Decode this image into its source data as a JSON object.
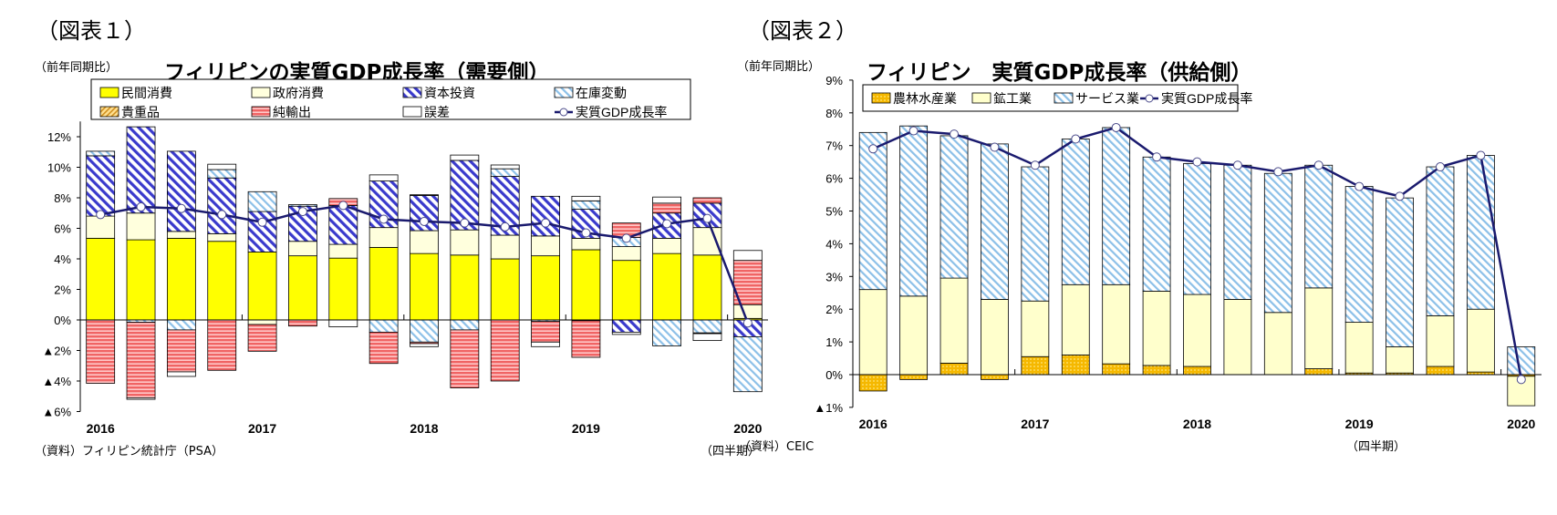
{
  "chart_data": [
    {
      "type": "bar",
      "figure_label": "（図表１）",
      "title": "フィリピンの実質GDP成長率（需要側）",
      "ylabel": "（前年同期比）",
      "source": "（資料）フィリピン統計庁（PSA）",
      "xunit": "（四半期）",
      "ylim": [
        -6,
        13
      ],
      "yticks": [
        -6,
        -4,
        -2,
        0,
        2,
        4,
        6,
        8,
        10,
        12
      ],
      "ytick_labels": [
        "▲6%",
        "▲4%",
        "▲2%",
        "0%",
        "2%",
        "4%",
        "6%",
        "8%",
        "10%",
        "12%"
      ],
      "categories": [
        "2016Q1",
        "2016Q2",
        "2016Q3",
        "2016Q4",
        "2017Q1",
        "2017Q2",
        "2017Q3",
        "2017Q4",
        "2018Q1",
        "2018Q2",
        "2018Q3",
        "2018Q4",
        "2019Q1",
        "2019Q2",
        "2019Q3",
        "2019Q4",
        "2020Q1"
      ],
      "year_labels": [
        "2016",
        "2017",
        "2018",
        "2019",
        "2020"
      ],
      "stacked": true,
      "legend_position": "top",
      "series": [
        {
          "name": "民間消費",
          "kind": "bar",
          "color": "#ffff00",
          "pattern": "solid",
          "values": [
            5.35,
            5.25,
            5.35,
            5.15,
            4.45,
            4.2,
            4.05,
            4.75,
            4.35,
            4.25,
            4.0,
            4.2,
            4.6,
            3.9,
            4.35,
            4.25,
            0.1
          ]
        },
        {
          "name": "政府消費",
          "kind": "bar",
          "color": "#ffffdd",
          "pattern": "solid",
          "values": [
            1.45,
            1.75,
            0.45,
            0.5,
            -0.3,
            0.95,
            0.9,
            1.3,
            1.5,
            1.65,
            1.55,
            1.3,
            0.75,
            0.9,
            1.0,
            1.8,
            0.9
          ]
        },
        {
          "name": "資本投資",
          "kind": "bar",
          "color": "#3a3acc",
          "pattern": "diagonal",
          "values": [
            3.95,
            5.65,
            5.25,
            3.65,
            2.65,
            2.3,
            2.55,
            3.05,
            2.3,
            4.55,
            3.85,
            2.6,
            1.9,
            -0.8,
            1.65,
            1.6,
            -1.1
          ]
        },
        {
          "name": "在庫変動",
          "kind": "bar",
          "color": "#8cc0e8",
          "pattern": "diagonal-thin",
          "values": [
            0.3,
            -0.15,
            -0.65,
            0.55,
            1.3,
            0.1,
            0,
            -0.8,
            -1.45,
            -0.65,
            0.5,
            -0.1,
            0.55,
            0.6,
            -1.7,
            -0.85,
            -3.6
          ]
        },
        {
          "name": "貴重品",
          "kind": "bar",
          "color": "#f0b030",
          "pattern": "hatch",
          "values": [
            0,
            0,
            0,
            0,
            0,
            0,
            0,
            0,
            0.05,
            0,
            0,
            0,
            -0.05,
            0,
            0,
            -0.05,
            0
          ]
        },
        {
          "name": "純輸出",
          "kind": "bar",
          "color": "#f06464",
          "pattern": "horizontal",
          "values": [
            -4.15,
            -4.95,
            -2.75,
            -3.3,
            -1.75,
            -0.4,
            0.45,
            -2.05,
            -0.1,
            -3.8,
            -4.0,
            -1.35,
            -2.4,
            0.95,
            0.65,
            0.35,
            2.9
          ]
        },
        {
          "name": "誤差",
          "kind": "bar",
          "color": "#ffffff",
          "pattern": "solid",
          "values": [
            0,
            -0.1,
            -0.3,
            0.35,
            0,
            0,
            -0.45,
            0.4,
            -0.2,
            0.35,
            0.25,
            -0.3,
            0.3,
            -0.15,
            0.4,
            -0.45,
            0.65
          ]
        },
        {
          "name": "実質GDP成長率",
          "kind": "line",
          "color": "#1a1a6e",
          "values": [
            6.9,
            7.4,
            7.3,
            6.9,
            6.4,
            7.1,
            7.5,
            6.6,
            6.45,
            6.35,
            6.1,
            6.35,
            5.7,
            5.35,
            6.3,
            6.65,
            -0.2
          ]
        }
      ]
    },
    {
      "type": "bar",
      "figure_label": "（図表２）",
      "title": "フィリピン　実質GDP成長率（供給側）",
      "ylabel": "（前年同期比）",
      "source": "（資料）CEIC",
      "xunit": "（四半期）",
      "ylim": [
        -1,
        9
      ],
      "yticks": [
        -1,
        0,
        1,
        2,
        3,
        4,
        5,
        6,
        7,
        8,
        9
      ],
      "ytick_labels": [
        "▲1%",
        "0%",
        "1%",
        "2%",
        "3%",
        "4%",
        "5%",
        "6%",
        "7%",
        "8%",
        "9%"
      ],
      "categories": [
        "2016Q1",
        "2016Q2",
        "2016Q3",
        "2016Q4",
        "2017Q1",
        "2017Q2",
        "2017Q3",
        "2017Q4",
        "2018Q1",
        "2018Q2",
        "2018Q3",
        "2018Q4",
        "2019Q1",
        "2019Q2",
        "2019Q3",
        "2019Q4",
        "2020Q1"
      ],
      "year_labels": [
        "2016",
        "2017",
        "2018",
        "2019",
        "2020"
      ],
      "stacked": true,
      "legend_position": "top",
      "series": [
        {
          "name": "農林水産業",
          "kind": "bar",
          "color": "#f5b800",
          "pattern": "dots",
          "values": [
            -0.5,
            -0.15,
            0.35,
            -0.15,
            0.55,
            0.6,
            0.33,
            0.28,
            0.25,
            0,
            0,
            0.18,
            0.05,
            0.05,
            0.25,
            0.08,
            -0.05
          ]
        },
        {
          "name": "鉱工業",
          "kind": "bar",
          "color": "#ffffcc",
          "pattern": "solid",
          "values": [
            2.6,
            2.4,
            2.6,
            2.3,
            1.7,
            2.15,
            2.42,
            2.27,
            2.2,
            2.3,
            1.9,
            2.47,
            1.55,
            0.8,
            1.55,
            1.92,
            -0.9
          ]
        },
        {
          "name": "サービス業",
          "kind": "bar",
          "color": "#8cc0e8",
          "pattern": "diagonal-thin",
          "values": [
            4.8,
            5.2,
            4.35,
            4.75,
            4.1,
            4.45,
            4.8,
            4.1,
            4.0,
            4.1,
            4.25,
            3.75,
            4.15,
            4.55,
            4.55,
            4.7,
            0.85
          ]
        },
        {
          "name": "実質GDP成長率",
          "kind": "line",
          "color": "#1a1a6e",
          "values": [
            6.9,
            7.45,
            7.35,
            6.95,
            6.4,
            7.2,
            7.55,
            6.65,
            6.5,
            6.4,
            6.2,
            6.4,
            5.75,
            5.45,
            6.35,
            6.7,
            -0.15
          ]
        }
      ]
    }
  ]
}
